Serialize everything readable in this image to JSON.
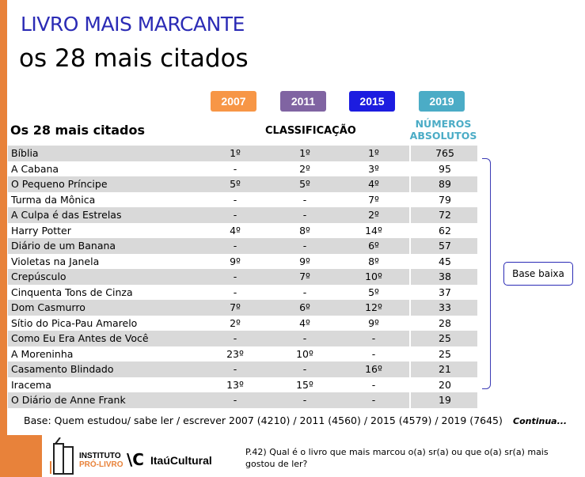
{
  "header": {
    "title": "LIVRO MAIS MARCANTE",
    "subtitle": "os 28 mais citados"
  },
  "years": [
    {
      "label": "2007",
      "color": "#f79646"
    },
    {
      "label": "2011",
      "color": "#8064a2"
    },
    {
      "label": "2015",
      "color": "#1c1ce0"
    },
    {
      "label": "2019",
      "color": "#4bacc6"
    }
  ],
  "table": {
    "title": "Os 28 mais citados",
    "classification": "CLASSIFICAÇÃO",
    "absolute_line1": "NÚMEROS",
    "absolute_line2": "ABSOLUTOS",
    "rows": [
      [
        "Bíblia",
        "1º",
        "1º",
        "1º",
        "765"
      ],
      [
        "A Cabana",
        "-",
        "2º",
        "3º",
        "95"
      ],
      [
        "O Pequeno Príncipe",
        "5º",
        "5º",
        "4º",
        "89"
      ],
      [
        "Turma da Mônica",
        "-",
        "-",
        "7º",
        "79"
      ],
      [
        "A Culpa é das Estrelas",
        "-",
        "-",
        "2º",
        "72"
      ],
      [
        "Harry Potter",
        "4º",
        "8º",
        "14º",
        "62"
      ],
      [
        "Diário de um Banana",
        "-",
        "-",
        "6º",
        "57"
      ],
      [
        "Violetas na Janela",
        "9º",
        "9º",
        "8º",
        "45"
      ],
      [
        "Crepúsculo",
        "-",
        "7º",
        "10º",
        "38"
      ],
      [
        "Cinquenta Tons de Cinza",
        "-",
        "-",
        "5º",
        "37"
      ],
      [
        "Dom Casmurro",
        "7º",
        "6º",
        "12º",
        "33"
      ],
      [
        "Sítio do Pica-Pau Amarelo",
        "2º",
        "4º",
        "9º",
        "28"
      ],
      [
        "Como Eu Era Antes de Você",
        "-",
        "-",
        "-",
        "25"
      ],
      [
        "A Moreninha",
        "23º",
        "10º",
        "-",
        "25"
      ],
      [
        "Casamento Blindado",
        "-",
        "-",
        "16º",
        "21"
      ],
      [
        "Iracema",
        "13º",
        "15º",
        "-",
        "20"
      ],
      [
        "O Diário de Anne Frank",
        "-",
        "-",
        "-",
        "19"
      ]
    ]
  },
  "note": "Base baixa",
  "base": "Base: Quem estudou/ sabe ler / escrever 2007 (4210) / 2011 (4560) / 2015 (4579) / 2019 (7645)",
  "continue": "Continua...",
  "question": "P.42) Qual é o livro que mais marcou o(a) sr(a) ou que o(a) sr(a) mais gostou de ler?",
  "logos": {
    "instituto1": "INSTITUTO",
    "instituto2": "PRÓ-LIVRO",
    "itau": "ItaúCultural"
  }
}
